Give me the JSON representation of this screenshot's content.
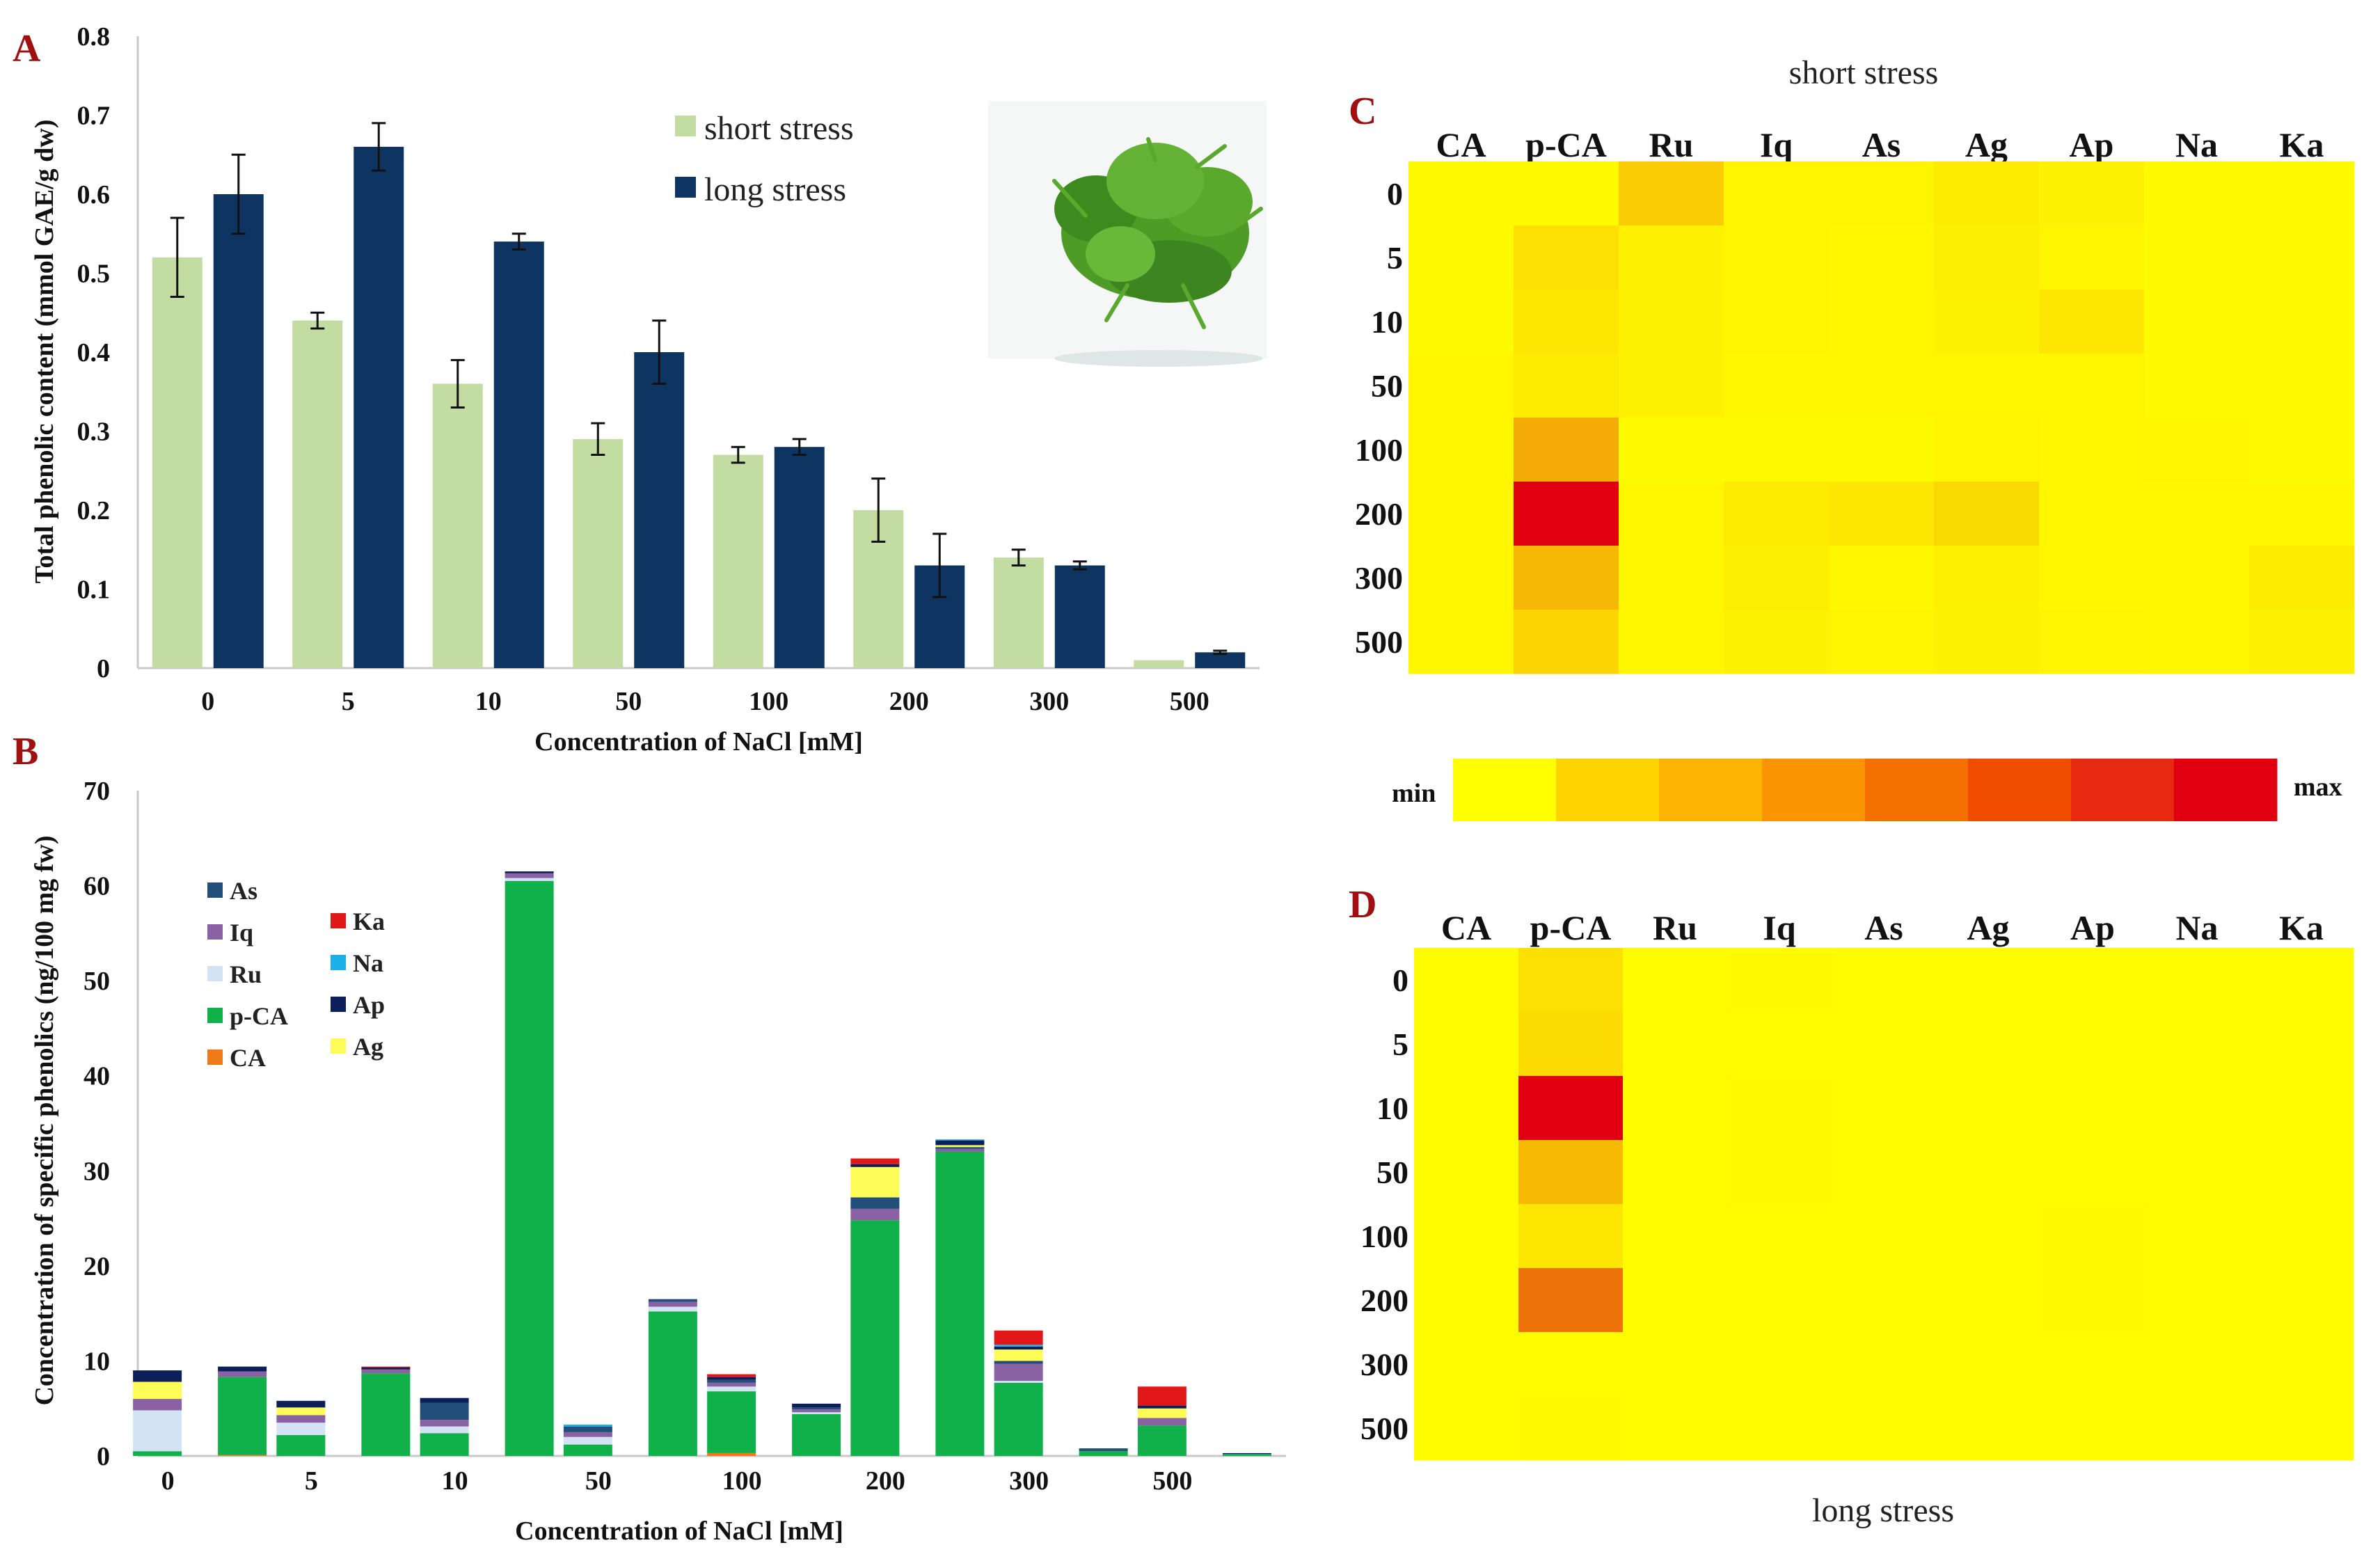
{
  "chart_data": [
    {
      "panel": "A",
      "type": "bar",
      "ylabel": "Total phenolic content (mmol GAE/g dw)",
      "xlabel": "Concentration of NaCl [mM]",
      "categories": [
        "0",
        "5",
        "10",
        "50",
        "100",
        "200",
        "300",
        "500"
      ],
      "ylim": [
        0,
        0.8
      ],
      "yticks": [
        "0",
        "0.1",
        "0.2",
        "0.3",
        "0.4",
        "0.5",
        "0.6",
        "0.7",
        "0.8"
      ],
      "series": [
        {
          "name": "short stress",
          "color": "#c3dca1",
          "values": [
            0.52,
            0.44,
            0.36,
            0.29,
            0.27,
            0.2,
            0.14,
            0.01
          ],
          "errors": [
            0.05,
            0.01,
            0.03,
            0.02,
            0.01,
            0.04,
            0.01,
            0.0
          ]
        },
        {
          "name": "long stress",
          "color": "#0e3461",
          "values": [
            0.6,
            0.66,
            0.54,
            0.4,
            0.28,
            0.13,
            0.13,
            0.02
          ],
          "errors": [
            0.05,
            0.03,
            0.01,
            0.04,
            0.01,
            0.04,
            0.005,
            0.002
          ]
        }
      ]
    },
    {
      "panel": "B",
      "type": "bar",
      "stacked": true,
      "ylabel": "Concentration of specific phenolics (ng/100 mg fw)",
      "xlabel": "Concentration of NaCl [mM]",
      "categories": [
        "0",
        "5",
        "10",
        "50",
        "100",
        "200",
        "300",
        "500"
      ],
      "ylim": [
        0,
        70
      ],
      "yticks": [
        "0",
        "10",
        "20",
        "30",
        "40",
        "50",
        "60",
        "70"
      ],
      "stack_order": [
        "CA",
        "p-CA",
        "Ru",
        "Iq",
        "As",
        "Ag",
        "Ap",
        "Na",
        "Ka"
      ],
      "colors": {
        "CA": "#f07a1a",
        "p-CA": "#10b04a",
        "Ru": "#d4e3f3",
        "Iq": "#8a62a3",
        "As": "#214f7a",
        "Ag": "#fdfb55",
        "Ap": "#0c1f5a",
        "Na": "#1cb0e8",
        "Ka": "#e01818"
      },
      "bars": [
        {
          "category": "0",
          "stress": "short",
          "values": {
            "CA": 0,
            "p-CA": 0.5,
            "Ru": 4.3,
            "Iq": 1.2,
            "As": 0,
            "Ag": 1.8,
            "Ap": 1.2,
            "Na": 0,
            "Ka": 0
          }
        },
        {
          "category": "0",
          "stress": "long",
          "values": {
            "CA": 0.1,
            "p-CA": 8.2,
            "Ru": 0,
            "Iq": 0.6,
            "As": 0,
            "Ag": 0,
            "Ap": 0.5,
            "Na": 0,
            "Ka": 0
          }
        },
        {
          "category": "5",
          "stress": "short",
          "values": {
            "CA": 0,
            "p-CA": 2.2,
            "Ru": 1.3,
            "Iq": 0.8,
            "As": 0,
            "Ag": 0.8,
            "Ap": 0.7,
            "Na": 0,
            "Ka": 0
          }
        },
        {
          "category": "5",
          "stress": "long",
          "values": {
            "CA": 0,
            "p-CA": 8.7,
            "Ru": 0,
            "Iq": 0.4,
            "As": 0,
            "Ag": 0,
            "Ap": 0.2,
            "Na": 0,
            "Ka": 0.1
          }
        },
        {
          "category": "10",
          "stress": "short",
          "values": {
            "CA": 0,
            "p-CA": 2.4,
            "Ru": 0.7,
            "Iq": 0.7,
            "As": 1.8,
            "Ag": 0,
            "Ap": 0.5,
            "Na": 0,
            "Ka": 0
          }
        },
        {
          "category": "10",
          "stress": "long",
          "values": {
            "CA": 0,
            "p-CA": 60.5,
            "Ru": 0.3,
            "Iq": 0.5,
            "As": 0,
            "Ag": 0,
            "Ap": 0.2,
            "Na": 0,
            "Ka": 0
          }
        },
        {
          "category": "50",
          "stress": "short",
          "values": {
            "CA": 0,
            "p-CA": 1.2,
            "Ru": 0.8,
            "Iq": 0.5,
            "As": 0.6,
            "Ag": 0,
            "Ap": 0,
            "Na": 0.2,
            "Ka": 0
          }
        },
        {
          "category": "50",
          "stress": "long",
          "values": {
            "CA": 0,
            "p-CA": 15.2,
            "Ru": 0.5,
            "Iq": 0.5,
            "As": 0.3,
            "Ag": 0,
            "Ap": 0,
            "Na": 0,
            "Ka": 0
          }
        },
        {
          "category": "100",
          "stress": "short",
          "values": {
            "CA": 0.3,
            "p-CA": 6.5,
            "Ru": 0.5,
            "Iq": 0.4,
            "As": 0.3,
            "Ag": 0,
            "Ap": 0.3,
            "Na": 0,
            "Ka": 0.3
          }
        },
        {
          "category": "100",
          "stress": "long",
          "values": {
            "CA": 0,
            "p-CA": 4.4,
            "Ru": 0.2,
            "Iq": 0.3,
            "As": 0.2,
            "Ag": 0,
            "Ap": 0.4,
            "Na": 0,
            "Ka": 0
          }
        },
        {
          "category": "200",
          "stress": "short",
          "values": {
            "CA": 0,
            "p-CA": 24.8,
            "Ru": 0,
            "Iq": 1.2,
            "As": 1.2,
            "Ag": 3.2,
            "Ap": 0.3,
            "Na": 0,
            "Ka": 0.6
          }
        },
        {
          "category": "200",
          "stress": "long",
          "values": {
            "CA": 0,
            "p-CA": 32.0,
            "Ru": 0,
            "Iq": 0.3,
            "As": 0.2,
            "Ag": 0.2,
            "Ap": 0.5,
            "Na": 0.1,
            "Ka": 0
          }
        },
        {
          "category": "300",
          "stress": "short",
          "values": {
            "CA": 0,
            "p-CA": 7.7,
            "Ru": 0.2,
            "Iq": 1.8,
            "As": 0.3,
            "Ag": 1.2,
            "Ap": 0.3,
            "Na": 0.2,
            "Ka": 1.5
          }
        },
        {
          "category": "300",
          "stress": "long",
          "values": {
            "CA": 0,
            "p-CA": 0.5,
            "Ru": 0,
            "Iq": 0,
            "As": 0.3,
            "Ag": 0,
            "Ap": 0,
            "Na": 0,
            "Ka": 0
          }
        },
        {
          "category": "500",
          "stress": "short",
          "values": {
            "CA": 0,
            "p-CA": 3.2,
            "Ru": 0,
            "Iq": 0.8,
            "As": 0,
            "Ag": 1.0,
            "Ap": 0.3,
            "Na": 0,
            "Ka": 2.0
          }
        },
        {
          "category": "500",
          "stress": "long",
          "values": {
            "CA": 0,
            "p-CA": 0.2,
            "Ru": 0,
            "Iq": 0,
            "As": 0,
            "Ag": 0,
            "Ap": 0.1,
            "Na": 0,
            "Ka": 0
          }
        }
      ],
      "legend_left": [
        "As",
        "Iq",
        "Ru",
        "p-CA",
        "CA"
      ],
      "legend_right": [
        "Ka",
        "Na",
        "Ap",
        "Ag"
      ]
    },
    {
      "panel": "C",
      "type": "heatmap",
      "title": "short stress",
      "columns": [
        "CA",
        "p-CA",
        "Ru",
        "Iq",
        "As",
        "Ag",
        "Ap",
        "Na",
        "Ka"
      ],
      "rows": [
        "0",
        "5",
        "10",
        "50",
        "100",
        "200",
        "300",
        "500"
      ],
      "values": [
        [
          0.02,
          0.02,
          0.2,
          0.04,
          0.04,
          0.08,
          0.05,
          0.02,
          0.02
        ],
        [
          0.02,
          0.12,
          0.06,
          0.04,
          0.03,
          0.07,
          0.04,
          0.02,
          0.02
        ],
        [
          0.02,
          0.1,
          0.05,
          0.04,
          0.03,
          0.05,
          0.1,
          0.02,
          0.02
        ],
        [
          0.03,
          0.08,
          0.05,
          0.03,
          0.03,
          0.03,
          0.03,
          0.02,
          0.02
        ],
        [
          0.03,
          0.33,
          0.02,
          0.02,
          0.02,
          0.04,
          0.03,
          0.04,
          0.02
        ],
        [
          0.03,
          1.0,
          0.03,
          0.08,
          0.1,
          0.15,
          0.03,
          0.03,
          0.03
        ],
        [
          0.03,
          0.28,
          0.03,
          0.07,
          0.03,
          0.06,
          0.03,
          0.03,
          0.08
        ],
        [
          0.03,
          0.17,
          0.03,
          0.05,
          0.04,
          0.05,
          0.04,
          0.03,
          0.06
        ]
      ]
    },
    {
      "panel": "D",
      "type": "heatmap",
      "title": "long stress",
      "columns": [
        "CA",
        "p-CA",
        "Ru",
        "Iq",
        "As",
        "Ag",
        "Ap",
        "Na",
        "Ka"
      ],
      "rows": [
        "0",
        "5",
        "10",
        "50",
        "100",
        "200",
        "300",
        "500"
      ],
      "values": [
        [
          0.01,
          0.12,
          0.01,
          0.02,
          0.01,
          0.01,
          0.01,
          0.01,
          0.01
        ],
        [
          0.01,
          0.14,
          0.01,
          0.01,
          0.01,
          0.01,
          0.01,
          0.01,
          0.01
        ],
        [
          0.01,
          1.0,
          0.01,
          0.02,
          0.01,
          0.01,
          0.01,
          0.01,
          0.01
        ],
        [
          0.01,
          0.27,
          0.01,
          0.02,
          0.01,
          0.01,
          0.01,
          0.01,
          0.01
        ],
        [
          0.01,
          0.1,
          0.01,
          0.01,
          0.01,
          0.01,
          0.02,
          0.01,
          0.01
        ],
        [
          0.01,
          0.55,
          0.01,
          0.01,
          0.01,
          0.01,
          0.02,
          0.01,
          0.01
        ],
        [
          0.01,
          0.01,
          0.01,
          0.01,
          0.01,
          0.01,
          0.01,
          0.01,
          0.01
        ],
        [
          0.01,
          0.02,
          0.01,
          0.01,
          0.01,
          0.01,
          0.01,
          0.01,
          0.01
        ]
      ]
    }
  ],
  "colorbar": {
    "min_label": "min",
    "max_label": "max",
    "colors": [
      "#ffff00",
      "#fed400",
      "#fcb400",
      "#fa9400",
      "#f57000",
      "#f04c00",
      "#e82810",
      "#e00010"
    ]
  }
}
